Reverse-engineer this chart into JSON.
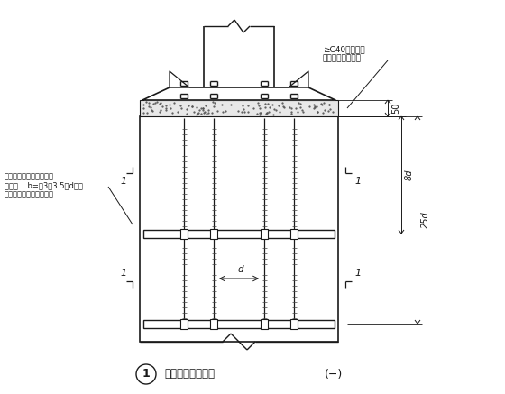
{
  "bg_color": "#ffffff",
  "line_color": "#1a1a1a",
  "title_text": "柱脚锡栓固定支架",
  "subtitle_text": "(−)",
  "label_left1": "锡栓固定摖角锂，通常角",
  "label_left2": "锂蒂宽    b=Ｈ3～3.5）d，肅",
  "label_left3": "厚取相应型号中之最厚者",
  "label_right1": "≥C40无收缩石",
  "label_right2": "混凝土或细石砂浆",
  "label_50": "50",
  "label_8d": "8d",
  "label_25d": "25d",
  "label_d": "d",
  "circle_number": "1"
}
